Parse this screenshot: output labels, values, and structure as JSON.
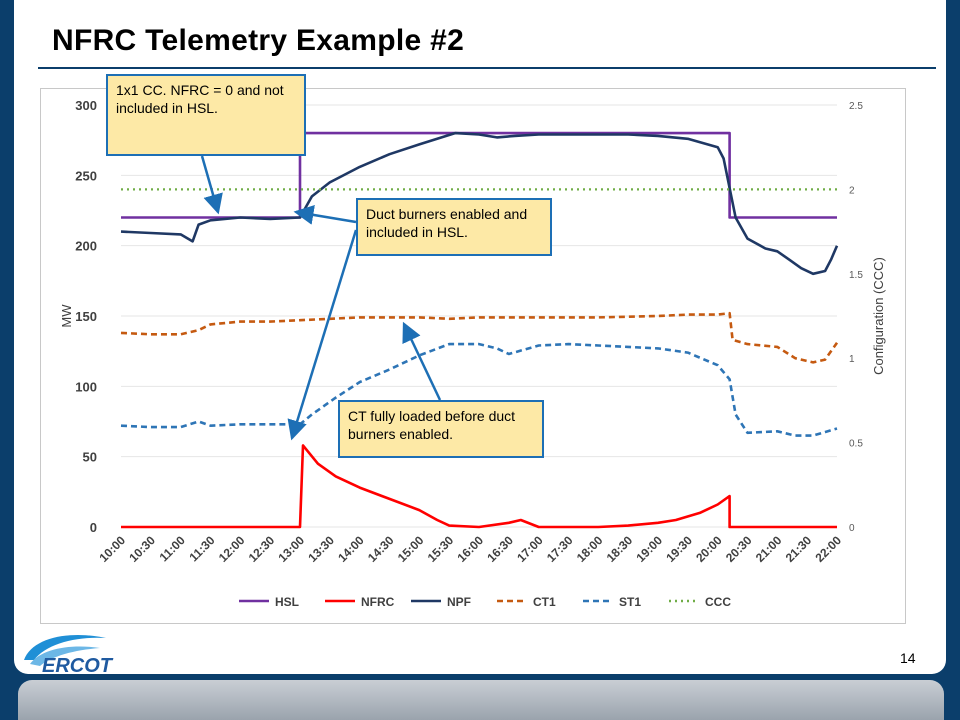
{
  "slide": {
    "title": "NFRC Telemetry Example #2",
    "page_number": "14",
    "logo_text": "ERCOT"
  },
  "callouts": {
    "c1": "1x1 CC.  NFRC = 0 and not included in HSL.",
    "c2": "Duct burners enabled and included in HSL.",
    "c3": "CT fully loaded before duct burners enabled."
  },
  "colors": {
    "HSL": "#7030a0",
    "NFRC": "#ff0000",
    "NPF": "#1f3864",
    "CT1": "#c55a11",
    "ST1": "#2e75b6",
    "CCC": "#70ad47",
    "callout_fill": "#fde9a6",
    "callout_border": "#1d6fb5"
  },
  "chart_data": {
    "type": "line",
    "ylabel": "MW",
    "y2label": "Configuration (CCC)",
    "ylim": [
      0,
      300
    ],
    "y2lim": [
      0,
      2.5
    ],
    "yticks": [
      "0",
      "50",
      "100",
      "150",
      "200",
      "250",
      "300"
    ],
    "y2ticks": [
      "0",
      "0.5",
      "1",
      "1.5",
      "2",
      "2.5"
    ],
    "xticks": [
      "10:00",
      "10:30",
      "11:00",
      "11:30",
      "12:00",
      "12:30",
      "13:00",
      "13:30",
      "14:00",
      "14:30",
      "15:00",
      "15:30",
      "16:00",
      "16:30",
      "17:00",
      "17:30",
      "18:00",
      "18:30",
      "19:00",
      "19:30",
      "20:00",
      "20:30",
      "21:00",
      "21:30",
      "22:00"
    ],
    "legend_position": "bottom",
    "series": [
      {
        "name": "HSL",
        "style": "solid",
        "points": [
          [
            10,
            220
          ],
          [
            13,
            220
          ],
          [
            13,
            280
          ],
          [
            20.2,
            280
          ],
          [
            20.2,
            220
          ],
          [
            22,
            220
          ]
        ]
      },
      {
        "name": "NFRC",
        "style": "solid",
        "points": [
          [
            10,
            0
          ],
          [
            13,
            0
          ],
          [
            13.05,
            58
          ],
          [
            13.3,
            45
          ],
          [
            13.6,
            36
          ],
          [
            14,
            28
          ],
          [
            14.5,
            20
          ],
          [
            15,
            12
          ],
          [
            15.3,
            5
          ],
          [
            15.5,
            1
          ],
          [
            16,
            0
          ],
          [
            16.5,
            3
          ],
          [
            16.7,
            5
          ],
          [
            17,
            0
          ],
          [
            17.5,
            0
          ],
          [
            18,
            0
          ],
          [
            18.5,
            1
          ],
          [
            19,
            3
          ],
          [
            19.3,
            5
          ],
          [
            19.7,
            10
          ],
          [
            20,
            16
          ],
          [
            20.2,
            22
          ],
          [
            20.2,
            0
          ],
          [
            22,
            0
          ]
        ]
      },
      {
        "name": "NPF",
        "style": "solid",
        "points": [
          [
            10,
            210
          ],
          [
            10.5,
            209
          ],
          [
            11,
            208
          ],
          [
            11.2,
            203
          ],
          [
            11.3,
            215
          ],
          [
            11.5,
            218
          ],
          [
            12,
            220
          ],
          [
            12.5,
            219
          ],
          [
            13,
            220
          ],
          [
            13.2,
            235
          ],
          [
            13.5,
            245
          ],
          [
            14,
            256
          ],
          [
            14.5,
            265
          ],
          [
            15,
            272
          ],
          [
            15.3,
            276
          ],
          [
            15.6,
            280
          ],
          [
            16,
            279
          ],
          [
            16.3,
            277
          ],
          [
            16.6,
            278
          ],
          [
            17,
            279
          ],
          [
            17.5,
            279
          ],
          [
            18,
            279
          ],
          [
            18.5,
            279
          ],
          [
            19,
            278
          ],
          [
            19.5,
            276
          ],
          [
            20,
            270
          ],
          [
            20.1,
            262
          ],
          [
            20.3,
            220
          ],
          [
            20.5,
            205
          ],
          [
            20.8,
            198
          ],
          [
            21,
            196
          ],
          [
            21.2,
            190
          ],
          [
            21.4,
            184
          ],
          [
            21.6,
            180
          ],
          [
            21.8,
            182
          ],
          [
            21.9,
            190
          ],
          [
            22,
            200
          ]
        ]
      },
      {
        "name": "CT1",
        "style": "dash",
        "points": [
          [
            10,
            138
          ],
          [
            10.5,
            137
          ],
          [
            11,
            137
          ],
          [
            11.3,
            140
          ],
          [
            11.5,
            144
          ],
          [
            12,
            146
          ],
          [
            12.5,
            146
          ],
          [
            13,
            147
          ],
          [
            13.5,
            148
          ],
          [
            14,
            149
          ],
          [
            14.5,
            149
          ],
          [
            15,
            149
          ],
          [
            15.5,
            148
          ],
          [
            16,
            149
          ],
          [
            16.5,
            149
          ],
          [
            17,
            149
          ],
          [
            18,
            149
          ],
          [
            19,
            150
          ],
          [
            19.5,
            151
          ],
          [
            20,
            151
          ],
          [
            20.2,
            152
          ],
          [
            20.25,
            133
          ],
          [
            20.5,
            130
          ],
          [
            21,
            128
          ],
          [
            21.3,
            120
          ],
          [
            21.6,
            117
          ],
          [
            21.8,
            119
          ],
          [
            22,
            131
          ]
        ]
      },
      {
        "name": "ST1",
        "style": "dash",
        "points": [
          [
            10,
            72
          ],
          [
            10.5,
            71
          ],
          [
            11,
            71
          ],
          [
            11.3,
            75
          ],
          [
            11.5,
            72
          ],
          [
            12,
            73
          ],
          [
            12.5,
            73
          ],
          [
            13,
            73
          ],
          [
            13.2,
            80
          ],
          [
            13.6,
            92
          ],
          [
            14,
            103
          ],
          [
            14.5,
            112
          ],
          [
            15,
            122
          ],
          [
            15.5,
            130
          ],
          [
            16,
            130
          ],
          [
            16.3,
            127
          ],
          [
            16.5,
            123
          ],
          [
            17,
            129
          ],
          [
            17.5,
            130
          ],
          [
            18,
            129
          ],
          [
            18.5,
            128
          ],
          [
            19,
            127
          ],
          [
            19.5,
            124
          ],
          [
            20,
            115
          ],
          [
            20.2,
            105
          ],
          [
            20.3,
            80
          ],
          [
            20.5,
            67
          ],
          [
            21,
            68
          ],
          [
            21.3,
            65
          ],
          [
            21.6,
            65
          ],
          [
            22,
            70
          ]
        ]
      },
      {
        "name": "CCC",
        "axis": "secondary",
        "style": "dot",
        "points": [
          [
            10,
            2
          ],
          [
            22,
            2
          ]
        ]
      }
    ]
  }
}
